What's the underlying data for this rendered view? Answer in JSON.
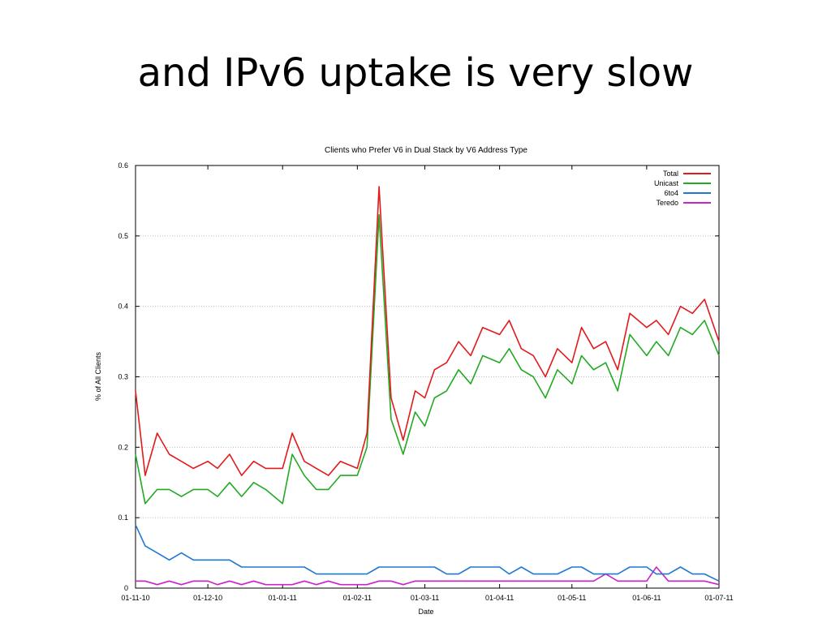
{
  "slide": {
    "title": "and IPv6 uptake is very slow"
  },
  "chart_data": {
    "type": "line",
    "title": "Clients who Prefer V6 in Dual Stack by V6 Address Type",
    "xlabel": "Date",
    "ylabel": "% of All Clients",
    "ylim": [
      0,
      0.6
    ],
    "xlim": [
      "2010-11-01",
      "2011-07-01"
    ],
    "yticks": [
      "0",
      "0.1",
      "0.2",
      "0.3",
      "0.4",
      "0.5",
      "0.6"
    ],
    "xticks": [
      {
        "date": "2010-11-01",
        "label": "01-11-10"
      },
      {
        "date": "2010-12-01",
        "label": "01-12-10"
      },
      {
        "date": "2011-01-01",
        "label": "01-01-11"
      },
      {
        "date": "2011-02-01",
        "label": "01-02-11"
      },
      {
        "date": "2011-03-01",
        "label": "01-03-11"
      },
      {
        "date": "2011-04-01",
        "label": "01-04-11"
      },
      {
        "date": "2011-05-01",
        "label": "01-05-11"
      },
      {
        "date": "2011-06-01",
        "label": "01-06-11"
      },
      {
        "date": "2011-07-01",
        "label": "01-07-11"
      }
    ],
    "grid": true,
    "legend_position": "top-right",
    "x": [
      "2010-11-01",
      "2010-11-05",
      "2010-11-10",
      "2010-11-15",
      "2010-11-20",
      "2010-11-25",
      "2010-12-01",
      "2010-12-05",
      "2010-12-10",
      "2010-12-15",
      "2010-12-20",
      "2010-12-25",
      "2011-01-01",
      "2011-01-05",
      "2011-01-10",
      "2011-01-15",
      "2011-01-20",
      "2011-01-25",
      "2011-02-01",
      "2011-02-05",
      "2011-02-10",
      "2011-02-15",
      "2011-02-20",
      "2011-02-25",
      "2011-03-01",
      "2011-03-05",
      "2011-03-10",
      "2011-03-15",
      "2011-03-20",
      "2011-03-25",
      "2011-04-01",
      "2011-04-05",
      "2011-04-10",
      "2011-04-15",
      "2011-04-20",
      "2011-04-25",
      "2011-05-01",
      "2011-05-05",
      "2011-05-10",
      "2011-05-15",
      "2011-05-20",
      "2011-05-25",
      "2011-06-01",
      "2011-06-05",
      "2011-06-10",
      "2011-06-15",
      "2011-06-20",
      "2011-06-25",
      "2011-07-01"
    ],
    "series": [
      {
        "name": "Total",
        "color": "#e31a1c",
        "values": [
          0.28,
          0.16,
          0.22,
          0.19,
          0.18,
          0.17,
          0.18,
          0.17,
          0.19,
          0.16,
          0.18,
          0.17,
          0.17,
          0.22,
          0.18,
          0.17,
          0.16,
          0.18,
          0.17,
          0.22,
          0.57,
          0.27,
          0.21,
          0.28,
          0.27,
          0.31,
          0.32,
          0.35,
          0.33,
          0.37,
          0.36,
          0.38,
          0.34,
          0.33,
          0.3,
          0.34,
          0.32,
          0.37,
          0.34,
          0.35,
          0.31,
          0.39,
          0.37,
          0.38,
          0.36,
          0.4,
          0.39,
          0.41,
          0.35
        ]
      },
      {
        "name": "Unicast",
        "color": "#22aa22",
        "values": [
          0.19,
          0.12,
          0.14,
          0.14,
          0.13,
          0.14,
          0.14,
          0.13,
          0.15,
          0.13,
          0.15,
          0.14,
          0.12,
          0.19,
          0.16,
          0.14,
          0.14,
          0.16,
          0.16,
          0.2,
          0.53,
          0.24,
          0.19,
          0.25,
          0.23,
          0.27,
          0.28,
          0.31,
          0.29,
          0.33,
          0.32,
          0.34,
          0.31,
          0.3,
          0.27,
          0.31,
          0.29,
          0.33,
          0.31,
          0.32,
          0.28,
          0.36,
          0.33,
          0.35,
          0.33,
          0.37,
          0.36,
          0.38,
          0.33
        ]
      },
      {
        "name": "6to4",
        "color": "#1f78d4",
        "values": [
          0.09,
          0.06,
          0.05,
          0.04,
          0.05,
          0.04,
          0.04,
          0.04,
          0.04,
          0.03,
          0.03,
          0.03,
          0.03,
          0.03,
          0.03,
          0.02,
          0.02,
          0.02,
          0.02,
          0.02,
          0.03,
          0.03,
          0.03,
          0.03,
          0.03,
          0.03,
          0.02,
          0.02,
          0.03,
          0.03,
          0.03,
          0.02,
          0.03,
          0.02,
          0.02,
          0.02,
          0.03,
          0.03,
          0.02,
          0.02,
          0.02,
          0.03,
          0.03,
          0.02,
          0.02,
          0.03,
          0.02,
          0.02,
          0.01
        ]
      },
      {
        "name": "Teredo",
        "color": "#cc22cc",
        "values": [
          0.01,
          0.01,
          0.005,
          0.01,
          0.005,
          0.01,
          0.01,
          0.005,
          0.01,
          0.005,
          0.01,
          0.005,
          0.005,
          0.005,
          0.01,
          0.005,
          0.01,
          0.005,
          0.005,
          0.005,
          0.01,
          0.01,
          0.005,
          0.01,
          0.01,
          0.01,
          0.01,
          0.01,
          0.01,
          0.01,
          0.01,
          0.01,
          0.01,
          0.01,
          0.01,
          0.01,
          0.01,
          0.01,
          0.01,
          0.02,
          0.01,
          0.01,
          0.01,
          0.03,
          0.01,
          0.01,
          0.01,
          0.01,
          0.005
        ]
      }
    ]
  }
}
